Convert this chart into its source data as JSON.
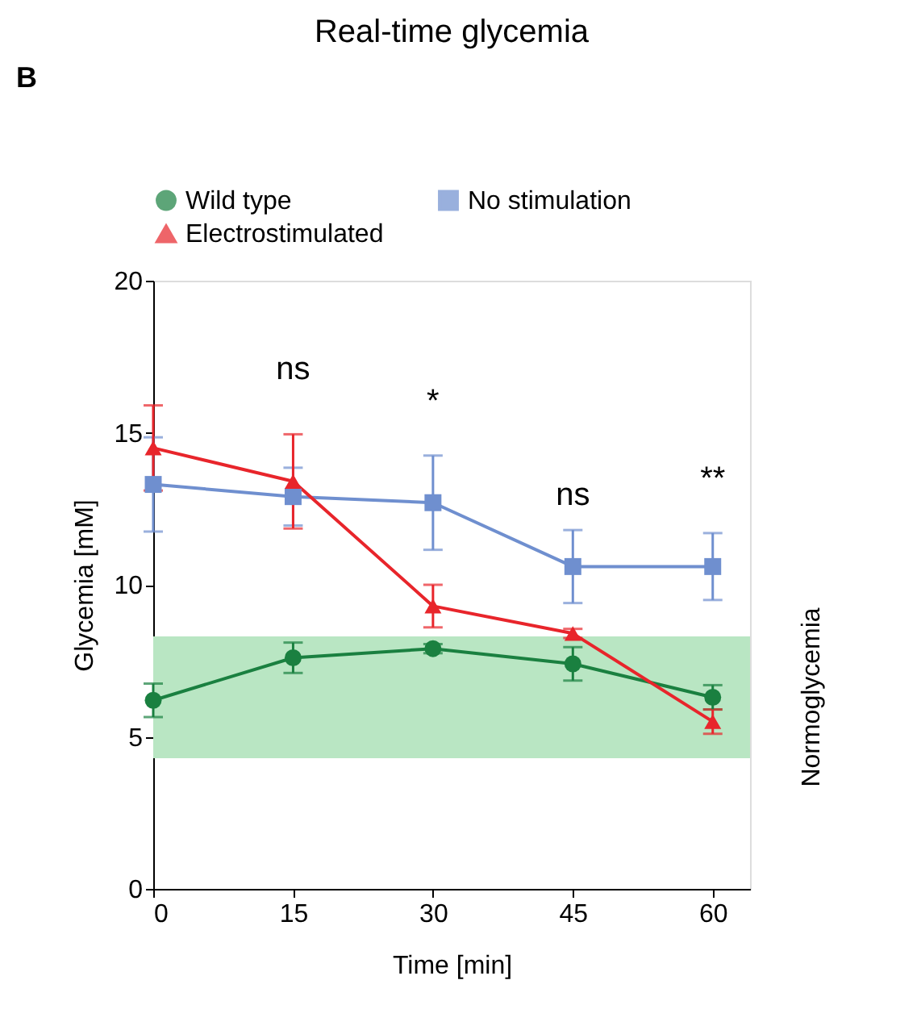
{
  "chart_data": {
    "type": "line",
    "title": "Real-time glycemia",
    "xlabel": "Time [min]",
    "ylabel": "Glycemia [mM]",
    "x": [
      0,
      15,
      30,
      45,
      60
    ],
    "xlim": [
      0,
      64
    ],
    "xticks": [
      0,
      15,
      30,
      45,
      60
    ],
    "ylim": [
      0,
      20
    ],
    "yticks": [
      0,
      5,
      10,
      15,
      20
    ],
    "series": [
      {
        "name": "Wild type",
        "color": "#1a8040",
        "marker": "circle",
        "values": [
          6.2,
          7.6,
          7.9,
          7.4,
          6.3
        ],
        "errors": [
          0.55,
          0.5,
          0.15,
          0.55,
          0.4
        ]
      },
      {
        "name": "No stimulation",
        "color": "#6f8fcf",
        "marker": "square",
        "values": [
          13.3,
          12.9,
          12.7,
          10.6,
          10.6
        ],
        "errors": [
          1.55,
          0.95,
          1.55,
          1.2,
          1.1
        ]
      },
      {
        "name": "Electrostimulated",
        "color": "#e8252b",
        "marker": "triangle",
        "values": [
          14.5,
          13.4,
          9.3,
          8.4,
          5.5
        ],
        "errors": [
          1.4,
          1.55,
          0.7,
          0.15,
          0.4
        ]
      }
    ],
    "bands": [
      {
        "axis": "y",
        "from": 4.3,
        "to": 8.3,
        "label": "Normoglycemia",
        "color": "#b9e6c3"
      }
    ],
    "annotations": [
      "B",
      "ns",
      "*",
      "ns",
      "**"
    ],
    "legend": "top",
    "grid": false
  }
}
